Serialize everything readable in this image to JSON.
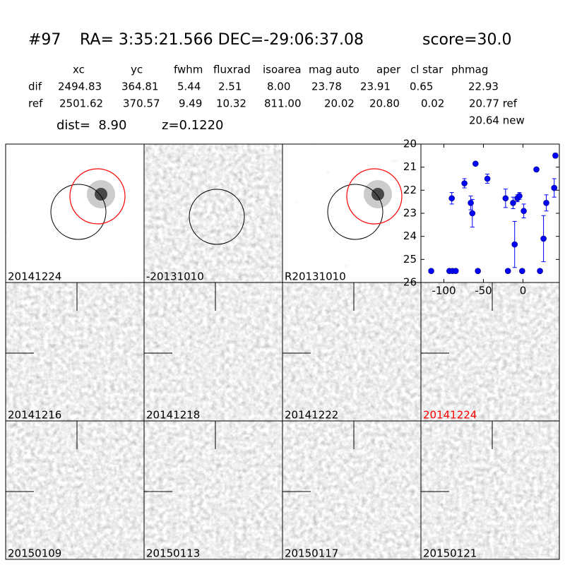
{
  "header": {
    "id": "#97",
    "coords": "RA= 3:35:21.566 DEC=-29:06:37.08",
    "score": "score=30.0"
  },
  "table": {
    "columns": [
      "xc",
      "yc",
      "fwhm",
      "fluxrad",
      "isoarea",
      "mag auto",
      "aper",
      "cl star",
      "phmag"
    ],
    "rows": [
      [
        "dif",
        "2494.83",
        "364.81",
        "5.44",
        "2.51",
        "8.00",
        "23.78",
        "23.91",
        "0.65",
        "22.93"
      ],
      [
        "ref",
        "2501.62",
        "370.57",
        "9.49",
        "10.32",
        "811.00",
        "20.02",
        "20.80",
        "0.02",
        "20.77 ref"
      ]
    ],
    "new": "20.64 new",
    "dist": "dist=  8.90",
    "z": "z=0.1220"
  },
  "panels": [
    "20141224",
    "-20131010",
    "R20131010",
    "20141216",
    "20141218",
    "20141222",
    "20141224",
    "20150109",
    "20150113",
    "20150117",
    "20150121"
  ],
  "chart_data": {
    "type": "errorbar",
    "color": "#0000ff",
    "x": [
      -116,
      -93,
      -89,
      -85,
      -90,
      -74,
      -66,
      -64,
      -60,
      -57,
      -45,
      -22,
      -19,
      -12.5,
      -10.5,
      -7,
      -4.5,
      -1,
      1,
      17,
      21.5,
      26,
      29.5,
      39.5,
      41
    ],
    "values": [
      25.5,
      25.5,
      25.5,
      25.5,
      22.35,
      21.7,
      22.55,
      23.0,
      20.85,
      25.5,
      21.5,
      22.35,
      25.5,
      22.55,
      24.35,
      22.35,
      22.25,
      25.5,
      22.9,
      21.1,
      25.5,
      24.1,
      22.55,
      21.9,
      20.5
    ],
    "errors": [
      null,
      null,
      null,
      null,
      0.25,
      0.2,
      0.3,
      0.6,
      0.05,
      null,
      0.2,
      0.4,
      null,
      0.25,
      1.0,
      0.15,
      0.15,
      null,
      0.3,
      0.05,
      null,
      1.0,
      0.35,
      0.4,
      0.1
    ],
    "xlim": [
      -129,
      46
    ],
    "ylim": [
      26,
      20
    ],
    "xticks": [
      -100,
      -50,
      0
    ],
    "yticks": [
      20,
      21,
      22,
      23,
      24,
      25,
      26
    ]
  }
}
